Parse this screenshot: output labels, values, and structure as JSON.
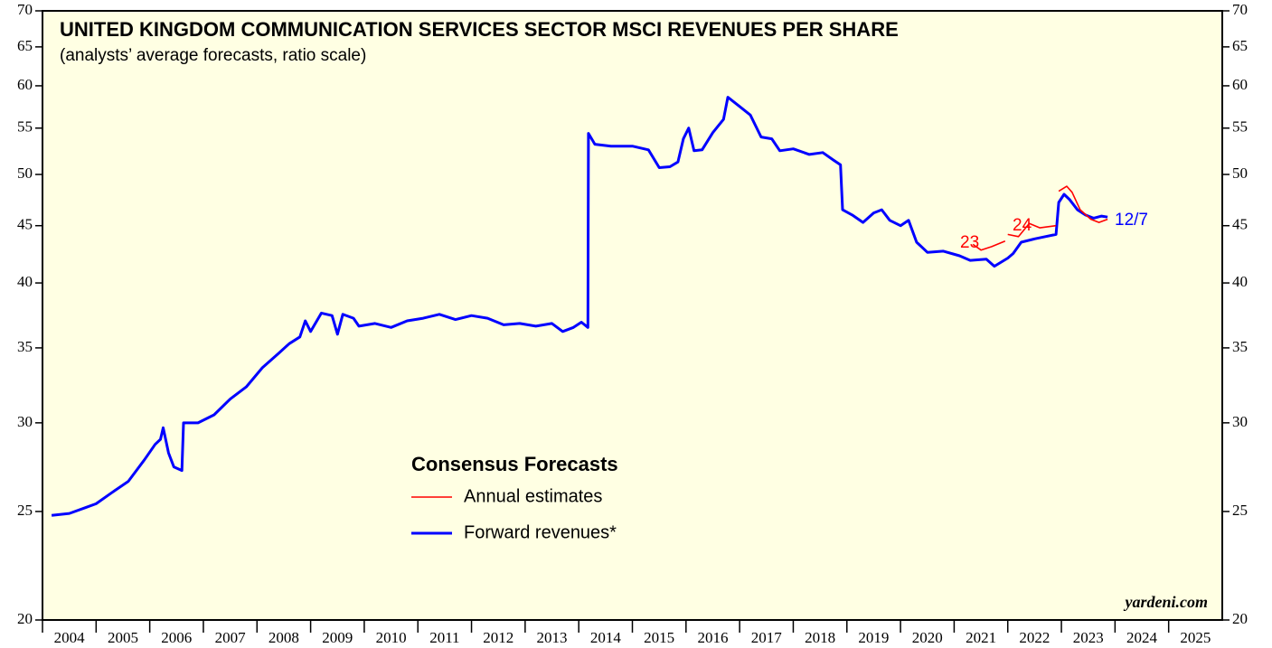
{
  "chart_data": {
    "type": "line",
    "title": "UNITED KINGDOM COMMUNICATION SERVICES SECTOR MSCI REVENUES PER SHARE",
    "subtitle": "(analysts’ average forecasts, ratio scale)",
    "legend_title": "Consensus Forecasts",
    "credit": "yardeni.com",
    "annotations": [
      "23",
      "24",
      "12/7"
    ],
    "log_scale": true,
    "ylim": [
      20,
      70
    ],
    "yticks": [
      20,
      25,
      30,
      35,
      40,
      45,
      50,
      55,
      60,
      65,
      70
    ],
    "xlim": [
      2004,
      2026
    ],
    "xticks": [
      2004,
      2005,
      2006,
      2007,
      2008,
      2009,
      2010,
      2011,
      2012,
      2013,
      2014,
      2015,
      2016,
      2017,
      2018,
      2019,
      2020,
      2021,
      2022,
      2023,
      2024,
      2025
    ],
    "series": [
      {
        "name": "Forward revenues*",
        "color": "#0000ff",
        "x": [
          2004.17,
          2004.5,
          2004.8,
          2005.0,
          2005.3,
          2005.6,
          2005.9,
          2006.1,
          2006.2,
          2006.25,
          2006.35,
          2006.45,
          2006.6,
          2006.63,
          2006.9,
          2007.2,
          2007.5,
          2007.8,
          2008.1,
          2008.4,
          2008.6,
          2008.8,
          2008.9,
          2009.0,
          2009.2,
          2009.4,
          2009.5,
          2009.6,
          2009.8,
          2009.9,
          2010.2,
          2010.5,
          2010.8,
          2011.1,
          2011.4,
          2011.7,
          2012.0,
          2012.3,
          2012.6,
          2012.9,
          2013.2,
          2013.5,
          2013.7,
          2013.9,
          2014.05,
          2014.17,
          2014.18,
          2014.3,
          2014.6,
          2015.0,
          2015.3,
          2015.5,
          2015.7,
          2015.85,
          2015.95,
          2016.05,
          2016.15,
          2016.3,
          2016.5,
          2016.7,
          2016.78,
          2017.0,
          2017.2,
          2017.4,
          2017.6,
          2017.75,
          2018.0,
          2018.3,
          2018.55,
          2018.75,
          2018.88,
          2018.92,
          2019.1,
          2019.3,
          2019.5,
          2019.65,
          2019.8,
          2020.0,
          2020.15,
          2020.3,
          2020.5,
          2020.8,
          2021.1,
          2021.3,
          2021.6,
          2021.75,
          2022.0,
          2022.1,
          2022.25,
          2022.5,
          2022.7,
          2022.9,
          2022.95,
          2023.05,
          2023.15,
          2023.3,
          2023.45,
          2023.6,
          2023.75,
          2023.86
        ],
        "values": [
          24.8,
          24.9,
          25.2,
          25.4,
          26.0,
          26.6,
          27.8,
          28.7,
          29.0,
          29.7,
          28.2,
          27.4,
          27.2,
          30.0,
          30.0,
          30.5,
          31.5,
          32.3,
          33.6,
          34.6,
          35.3,
          35.8,
          37.0,
          36.2,
          37.6,
          37.4,
          36.0,
          37.5,
          37.2,
          36.6,
          36.8,
          36.5,
          37.0,
          37.2,
          37.5,
          37.1,
          37.4,
          37.2,
          36.7,
          36.8,
          36.6,
          36.8,
          36.2,
          36.5,
          36.9,
          36.5,
          54.4,
          53.2,
          53.0,
          53.0,
          52.6,
          50.7,
          50.8,
          51.3,
          53.8,
          55.0,
          52.5,
          52.6,
          54.5,
          56.0,
          58.6,
          57.5,
          56.5,
          54.0,
          53.8,
          52.5,
          52.7,
          52.1,
          52.3,
          51.5,
          51.0,
          46.5,
          46.0,
          45.3,
          46.2,
          46.5,
          45.5,
          45.0,
          45.5,
          43.5,
          42.6,
          42.7,
          42.3,
          41.9,
          42.0,
          41.4,
          42.1,
          42.5,
          43.5,
          43.8,
          44.0,
          44.2,
          47.2,
          48.0,
          47.5,
          46.5,
          46.0,
          45.7,
          45.9,
          45.8
        ]
      },
      {
        "name": "Annual estimates",
        "color": "#ff0000",
        "x": [
          2021.35,
          2021.5,
          2021.7,
          2021.95,
          2021.97,
          2022.0,
          2022.2,
          2022.4,
          2022.6,
          2022.9,
          2022.93,
          2022.95,
          2023.1,
          2023.2,
          2023.35,
          2023.55,
          2023.7,
          2023.86
        ],
        "values": [
          43.3,
          42.8,
          43.1,
          43.6,
          null,
          44.2,
          44.0,
          45.2,
          44.8,
          45.0,
          null,
          48.3,
          48.8,
          48.2,
          46.5,
          45.6,
          45.3,
          45.6
        ]
      }
    ]
  }
}
